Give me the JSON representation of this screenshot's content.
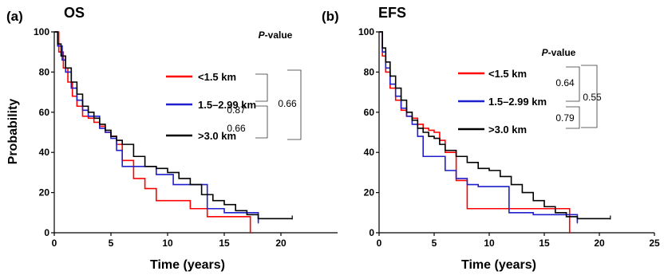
{
  "colors": {
    "lt15": "#ff0000",
    "mid": "#1f1fcc",
    "gt3": "#000000"
  },
  "chart_data": [
    {
      "type": "line",
      "panel_label": "(a)",
      "title": "OS",
      "xlabel": "Time (years)",
      "ylabel": "Probability",
      "xlim": [
        0,
        25
      ],
      "ylim": [
        0,
        100
      ],
      "x_ticks": [
        "0",
        "5",
        "10",
        "15",
        "20"
      ],
      "y_ticks": [
        "0",
        "20",
        "40",
        "60",
        "80",
        "100"
      ],
      "grid": false,
      "pvalue_header": "P-value",
      "pvalue_header_italic": "P",
      "pvalue_header_rest": "-value",
      "pvalues": {
        "lt15_vs_mid": "0.87",
        "mid_vs_gt3": "0.66",
        "lt15_vs_gt3": "0.66"
      },
      "series": [
        {
          "name": "<1.5 km",
          "color_key": "lt15",
          "x": [
            0,
            0.4,
            0.8,
            1.2,
            1.6,
            2.0,
            2.5,
            3.0,
            3.5,
            4.0,
            4.5,
            5.0,
            5.5,
            6.0,
            7.0,
            8.0,
            9.0,
            10.5,
            12.0,
            13.5,
            15.0,
            16.5,
            17.3
          ],
          "y": [
            100,
            90,
            82,
            75,
            68,
            63,
            58,
            57,
            55,
            53,
            50,
            48,
            44,
            36,
            27,
            22,
            16,
            16,
            12,
            8,
            8,
            8,
            0
          ]
        },
        {
          "name": "1.5–2.99 km",
          "color_key": "mid",
          "x": [
            0,
            0.3,
            0.7,
            1.0,
            1.5,
            2.0,
            2.5,
            3.0,
            3.5,
            4.0,
            4.5,
            5.0,
            5.5,
            6.0,
            8.0,
            9.0,
            10.5,
            12.0,
            13.5,
            15.0,
            17.5,
            18.0
          ],
          "y": [
            100,
            93,
            86,
            80,
            72,
            66,
            61,
            58,
            58,
            52,
            50,
            47,
            41,
            33,
            33,
            29,
            24,
            24,
            12,
            10,
            10,
            5
          ]
        },
        {
          "name": ">3.0 km",
          "color_key": "gt3",
          "x": [
            0,
            0.3,
            0.6,
            1.0,
            1.5,
            2.0,
            2.5,
            3.0,
            3.5,
            4.0,
            4.5,
            5.0,
            5.5,
            6.0,
            7.0,
            8.0,
            9.0,
            10.0,
            11.0,
            12.0,
            13.0,
            14.0,
            15.0,
            16.0,
            17.0,
            18.0,
            21.0
          ],
          "y": [
            100,
            94,
            88,
            82,
            75,
            69,
            63,
            60,
            57,
            54,
            51,
            48,
            46,
            44,
            38,
            33,
            32,
            30,
            27,
            24,
            19,
            16,
            14,
            11,
            9,
            7,
            7
          ]
        }
      ]
    },
    {
      "type": "line",
      "panel_label": "(b)",
      "title": "EFS",
      "xlabel": "Time (years)",
      "ylabel": "",
      "xlim": [
        0,
        25
      ],
      "ylim": [
        0,
        100
      ],
      "x_ticks": [
        "0",
        "5",
        "10",
        "15",
        "20",
        "25"
      ],
      "y_ticks": [
        "0",
        "20",
        "40",
        "60",
        "80",
        "100"
      ],
      "grid": false,
      "pvalue_header": "P-value",
      "pvalue_header_italic": "P",
      "pvalue_header_rest": "-value",
      "pvalues": {
        "lt15_vs_mid": "0.64",
        "mid_vs_gt3": "0.79",
        "lt15_vs_gt3": "0.55"
      },
      "series": [
        {
          "name": "<1.5 km",
          "color_key": "lt15",
          "x": [
            0,
            0.3,
            0.6,
            1.0,
            1.5,
            2.0,
            2.5,
            3.0,
            3.5,
            4.0,
            4.5,
            5.0,
            5.5,
            6.0,
            7.0,
            8.0,
            9.0,
            12.0,
            15.0,
            17.3
          ],
          "y": [
            100,
            88,
            80,
            72,
            66,
            61,
            58,
            57,
            54,
            52,
            51,
            50,
            46,
            40,
            26,
            12,
            12,
            12,
            12,
            0
          ]
        },
        {
          "name": "1.5–2.99 km",
          "color_key": "mid",
          "x": [
            0,
            0.3,
            0.6,
            1.0,
            1.5,
            2.0,
            2.5,
            3.0,
            3.5,
            4.0,
            4.5,
            5.0,
            6.0,
            7.0,
            8.0,
            9.0,
            10.5,
            11.8,
            14.0,
            17.0,
            18.0
          ],
          "y": [
            100,
            90,
            82,
            74,
            68,
            62,
            58,
            54,
            48,
            38,
            38,
            38,
            31,
            27,
            24,
            23,
            23,
            10,
            9,
            9,
            5
          ]
        },
        {
          "name": ">3.0 km",
          "color_key": "gt3",
          "x": [
            0,
            0.3,
            0.6,
            1.0,
            1.5,
            2.0,
            2.5,
            3.0,
            3.5,
            4.0,
            4.5,
            5.0,
            5.5,
            6.0,
            7.0,
            8.0,
            9.0,
            10.0,
            11.0,
            12.0,
            13.0,
            14.0,
            15.0,
            16.0,
            17.0,
            18.0,
            21.0
          ],
          "y": [
            100,
            92,
            85,
            78,
            72,
            66,
            60,
            56,
            52,
            50,
            48,
            47,
            44,
            41,
            38,
            35,
            32,
            31,
            28,
            24,
            20,
            16,
            13,
            10,
            8,
            7,
            7
          ]
        }
      ]
    }
  ]
}
